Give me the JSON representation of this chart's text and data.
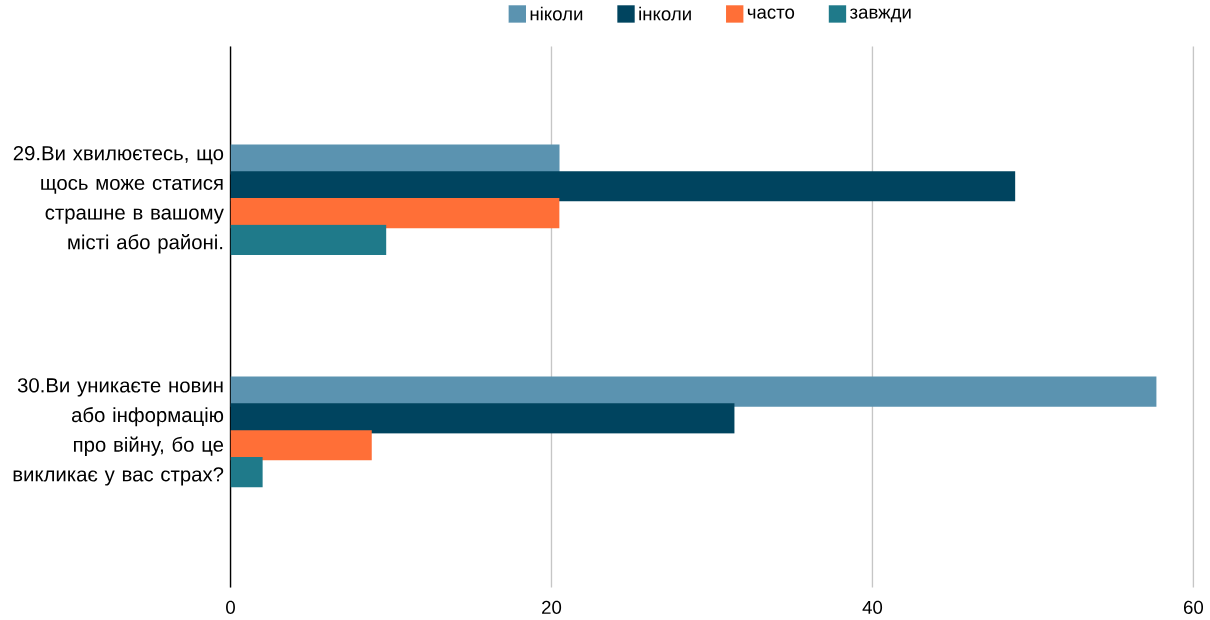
{
  "chart_data": {
    "type": "bar",
    "orientation": "horizontal",
    "categories": [
      "29.Ви хвилюєтесь, що щось може статися страшне в вашому місті або районі.",
      "30.Ви уникаєте новин або інформацію про війну, бо це викликає у вас страх?"
    ],
    "series": [
      {
        "name": "ніколи",
        "color": "#5b93b0",
        "values": [
          20.5,
          57.7
        ]
      },
      {
        "name": "інколи",
        "color": "#00445f",
        "values": [
          48.9,
          31.4
        ]
      },
      {
        "name": "часто",
        "color": "#ff6f37",
        "values": [
          20.5,
          8.8
        ]
      },
      {
        "name": "завжди",
        "color": "#1f7a8a",
        "values": [
          9.7,
          2.0
        ]
      }
    ],
    "xlim": [
      0,
      60
    ],
    "xticks": [
      0,
      20,
      40,
      60
    ],
    "grid": "x",
    "legend": "top"
  }
}
